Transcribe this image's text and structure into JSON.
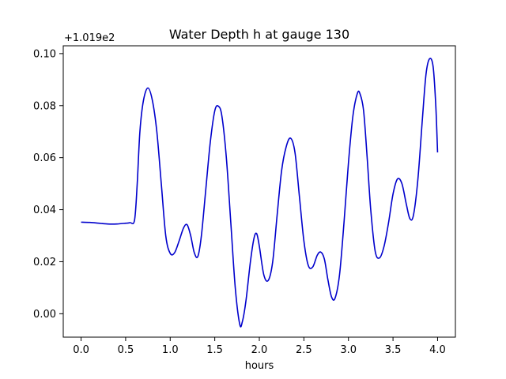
{
  "chart_data": {
    "type": "line",
    "title": "Water Depth h at gauge 130",
    "xlabel": "hours",
    "ylabel": "",
    "offset_label": "+1.019e2",
    "xlim": [
      -0.2,
      4.2
    ],
    "ylim": [
      -0.009,
      0.103
    ],
    "xticks": [
      0.0,
      0.5,
      1.0,
      1.5,
      2.0,
      2.5,
      3.0,
      3.5,
      4.0
    ],
    "xtick_labels": [
      "0.0",
      "0.5",
      "1.0",
      "1.5",
      "2.0",
      "2.5",
      "3.0",
      "3.5",
      "4.0"
    ],
    "yticks": [
      0.0,
      0.02,
      0.04,
      0.06,
      0.08,
      0.1
    ],
    "ytick_labels": [
      "0.00",
      "0.02",
      "0.04",
      "0.06",
      "0.08",
      "0.10"
    ],
    "grid": false,
    "line_color": "#0000cc",
    "series": [
      {
        "x": [
          0.0,
          0.1,
          0.2,
          0.3,
          0.4,
          0.5,
          0.55,
          0.6,
          0.63,
          0.66,
          0.7,
          0.75,
          0.8,
          0.85,
          0.9,
          0.95,
          1.0,
          1.05,
          1.1,
          1.15,
          1.19,
          1.23,
          1.27,
          1.31,
          1.35,
          1.4,
          1.45,
          1.5,
          1.54,
          1.58,
          1.63,
          1.68,
          1.73,
          1.78,
          1.81,
          1.85,
          1.9,
          1.94,
          1.97,
          2.0,
          2.05,
          2.1,
          2.15,
          2.2,
          2.25,
          2.3,
          2.35,
          2.4,
          2.45,
          2.5,
          2.55,
          2.6,
          2.65,
          2.69,
          2.73,
          2.77,
          2.81,
          2.85,
          2.9,
          2.95,
          3.0,
          3.05,
          3.1,
          3.13,
          3.17,
          3.21,
          3.25,
          3.3,
          3.35,
          3.4,
          3.45,
          3.5,
          3.55,
          3.6,
          3.65,
          3.69,
          3.73,
          3.78,
          3.83,
          3.87,
          3.91,
          3.95,
          3.98,
          4.0
        ],
        "y": [
          0.0352,
          0.0351,
          0.0348,
          0.0345,
          0.0345,
          0.0348,
          0.035,
          0.036,
          0.05,
          0.07,
          0.082,
          0.0868,
          0.082,
          0.07,
          0.05,
          0.03,
          0.0232,
          0.0235,
          0.028,
          0.033,
          0.0342,
          0.03,
          0.0235,
          0.022,
          0.03,
          0.048,
          0.066,
          0.078,
          0.0798,
          0.076,
          0.06,
          0.035,
          0.01,
          -0.004,
          -0.003,
          0.005,
          0.02,
          0.029,
          0.0308,
          0.026,
          0.015,
          0.0128,
          0.02,
          0.038,
          0.055,
          0.064,
          0.0675,
          0.062,
          0.045,
          0.028,
          0.0185,
          0.018,
          0.0225,
          0.0237,
          0.021,
          0.013,
          0.0065,
          0.006,
          0.015,
          0.035,
          0.058,
          0.076,
          0.0847,
          0.0845,
          0.078,
          0.06,
          0.04,
          0.024,
          0.0215,
          0.026,
          0.035,
          0.046,
          0.0518,
          0.05,
          0.042,
          0.0365,
          0.038,
          0.052,
          0.075,
          0.092,
          0.098,
          0.095,
          0.08,
          0.062
        ]
      }
    ]
  }
}
